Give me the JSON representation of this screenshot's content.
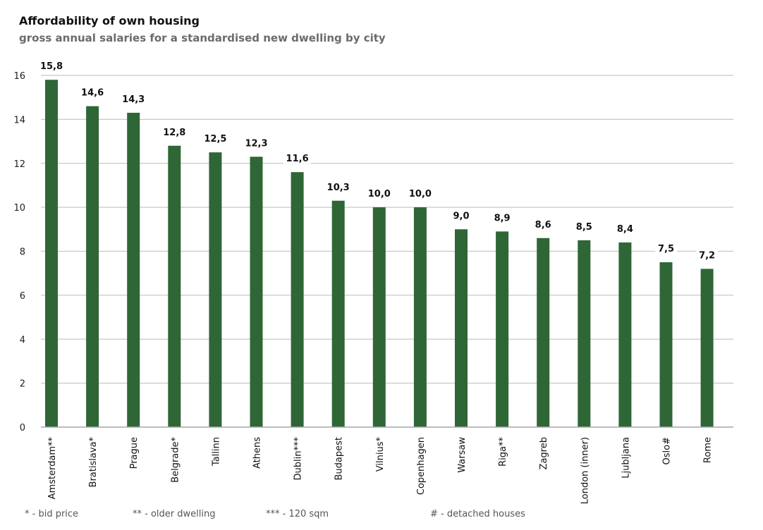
{
  "header": {
    "title": "Affordability of own housing",
    "subtitle": "gross annual salaries for a standardised new dwelling by city"
  },
  "footnotes": [
    "* - bid price",
    "** - older dwelling",
    "*** - 120 sqm",
    "# - detached houses"
  ],
  "chart_data": {
    "type": "bar",
    "title": "Affordability of own housing",
    "subtitle": "gross annual salaries for a standardised new dwelling by city",
    "categories": [
      "Amsterdam**",
      "Bratislava*",
      "Prague",
      "Belgrade*",
      "Tallinn",
      "Athens",
      "Dublin***",
      "Budapest",
      "Vilnius*",
      "Copenhagen",
      "Warsaw",
      "Riga**",
      "Zagreb",
      "London (inner)",
      "Ljubljana",
      "Oslo#",
      "Rome"
    ],
    "values": [
      15.8,
      14.6,
      14.3,
      12.8,
      12.5,
      12.3,
      11.6,
      10.3,
      10.0,
      10.0,
      9.0,
      8.9,
      8.6,
      8.5,
      8.4,
      7.5,
      7.2
    ],
    "value_labels": [
      "15,8",
      "14,6",
      "14,3",
      "12,8",
      "12,5",
      "12,3",
      "11,6",
      "10,3",
      "10,0",
      "10,0",
      "9,0",
      "8,9",
      "8,6",
      "8,5",
      "8,4",
      "7,5",
      "7,2"
    ],
    "yticks": [
      0,
      2,
      4,
      6,
      8,
      10,
      12,
      14,
      16
    ],
    "ylim": [
      0,
      16
    ],
    "xlabel": "",
    "ylabel": "",
    "grid": true,
    "legend": false,
    "bar_color": "#2f6636",
    "grid_color": "#c8c8c8"
  }
}
